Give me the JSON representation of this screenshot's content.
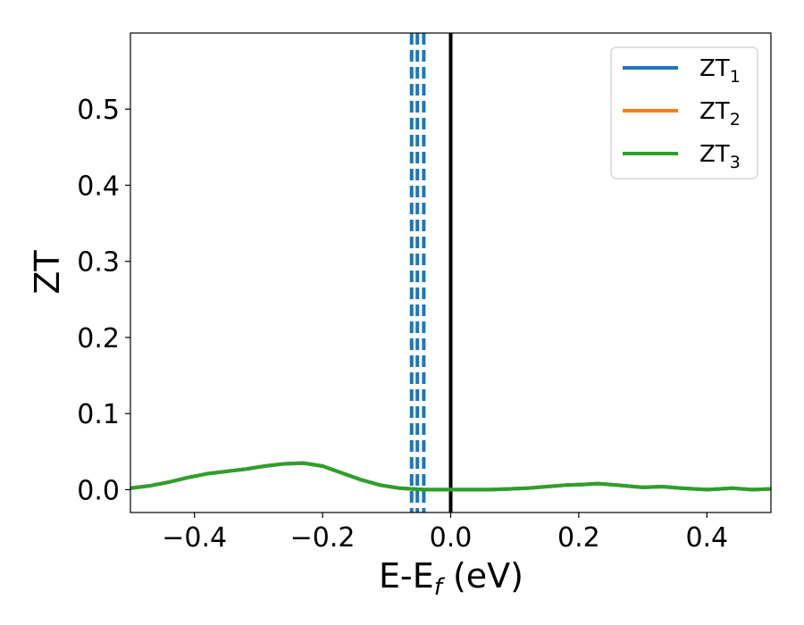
{
  "chart_data": {
    "type": "line",
    "xlabel": "E-E",
    "xlabel_sub": "f",
    "xlabel_unit": " (eV)",
    "ylabel": "ZT",
    "xlim": [
      -0.5,
      0.5
    ],
    "ylim": [
      -0.03,
      0.6
    ],
    "xticks": [
      -0.4,
      -0.2,
      0.0,
      0.2,
      0.4
    ],
    "xtick_labels": [
      "−0.4",
      "−0.2",
      "0.0",
      "0.2",
      "0.4"
    ],
    "yticks": [
      0.0,
      0.1,
      0.2,
      0.3,
      0.4,
      0.5
    ],
    "ytick_labels": [
      "0.0",
      "0.1",
      "0.2",
      "0.3",
      "0.4",
      "0.5"
    ],
    "legend_position": "top-right",
    "grid": false,
    "x": [
      -0.5,
      -0.47,
      -0.44,
      -0.41,
      -0.38,
      -0.35,
      -0.32,
      -0.29,
      -0.26,
      -0.23,
      -0.2,
      -0.17,
      -0.14,
      -0.11,
      -0.08,
      -0.06,
      -0.04,
      -0.02,
      0.0,
      0.03,
      0.06,
      0.09,
      0.12,
      0.15,
      0.18,
      0.21,
      0.23,
      0.26,
      0.3,
      0.33,
      0.36,
      0.4,
      0.44,
      0.47,
      0.5
    ],
    "series": [
      {
        "name": "ZT",
        "name_sub": "1",
        "color": "#1f77b4",
        "values": [
          0.002,
          0.005,
          0.01,
          0.016,
          0.021,
          0.024,
          0.027,
          0.031,
          0.034,
          0.035,
          0.031,
          0.022,
          0.013,
          0.006,
          0.002,
          0.001,
          0.0,
          0.0,
          0.0,
          0.0,
          0.0,
          0.001,
          0.002,
          0.004,
          0.006,
          0.007,
          0.008,
          0.006,
          0.003,
          0.004,
          0.002,
          0.0,
          0.002,
          0.0,
          0.001
        ]
      },
      {
        "name": "ZT",
        "name_sub": "2",
        "color": "#ff7f0e",
        "values": [
          0.002,
          0.005,
          0.01,
          0.016,
          0.021,
          0.024,
          0.027,
          0.031,
          0.034,
          0.035,
          0.031,
          0.022,
          0.013,
          0.006,
          0.002,
          0.001,
          0.0,
          0.0,
          0.0,
          0.0,
          0.0,
          0.001,
          0.002,
          0.004,
          0.006,
          0.007,
          0.008,
          0.006,
          0.003,
          0.004,
          0.002,
          0.0,
          0.002,
          0.0,
          0.001
        ]
      },
      {
        "name": "ZT",
        "name_sub": "3",
        "color": "#2ca02c",
        "values": [
          0.002,
          0.005,
          0.01,
          0.016,
          0.021,
          0.024,
          0.027,
          0.031,
          0.034,
          0.035,
          0.031,
          0.022,
          0.013,
          0.006,
          0.002,
          0.001,
          0.0,
          0.0,
          0.0,
          0.0,
          0.0,
          0.001,
          0.002,
          0.004,
          0.006,
          0.007,
          0.008,
          0.006,
          0.003,
          0.004,
          0.002,
          0.0,
          0.002,
          0.0,
          0.001
        ]
      }
    ],
    "vlines": [
      {
        "x": -0.061,
        "style": "dashed",
        "color": "#1f77b4"
      },
      {
        "x": -0.052,
        "style": "dashed",
        "color": "#1f77b4"
      },
      {
        "x": -0.042,
        "style": "dashed",
        "color": "#1f77b4"
      },
      {
        "x": 0.0,
        "style": "solid",
        "color": "#000000"
      }
    ]
  }
}
